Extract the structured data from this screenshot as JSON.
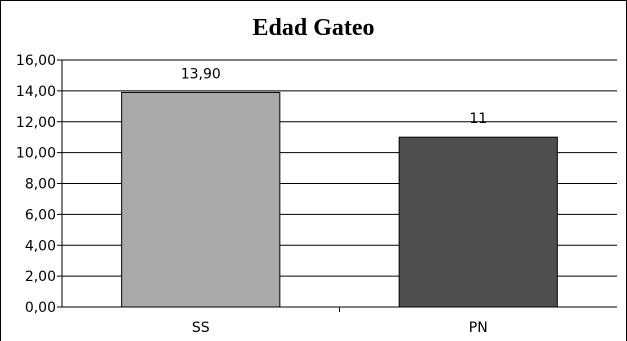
{
  "chart_data": {
    "type": "bar",
    "title": "Edad Gateo",
    "categories": [
      "SS",
      "PN"
    ],
    "values": [
      13.9,
      11
    ],
    "data_labels": [
      "13,90",
      "11"
    ],
    "colors": [
      "#a9a9a9",
      "#4f4f4f"
    ],
    "xlabel": "",
    "ylabel": "",
    "ylim": [
      0,
      16
    ],
    "yticks": [
      "0,00",
      "2,00",
      "4,00",
      "6,00",
      "8,00",
      "10,00",
      "12,00",
      "14,00",
      "16,00"
    ],
    "grid": true,
    "legend": "none"
  }
}
